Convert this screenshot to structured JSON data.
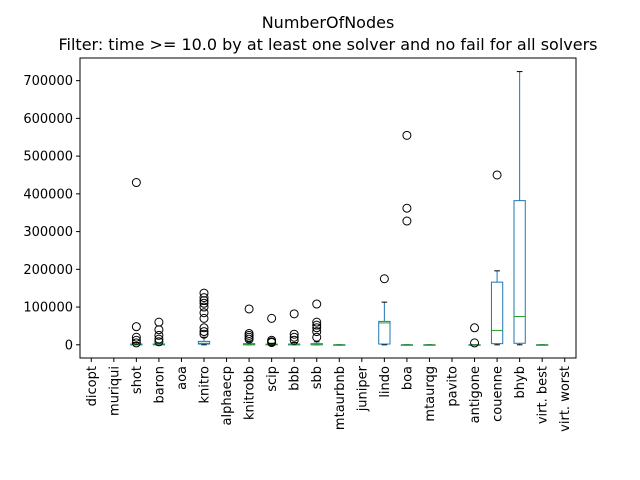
{
  "chart_data": {
    "type": "box",
    "title": "NumberOfNodes",
    "subtitle": "Filter: time >= 10.0 by at least one solver and no fail for all solvers",
    "xlabel": "",
    "ylabel": "",
    "ylim": [
      -35000,
      760000
    ],
    "yticks": [
      0,
      100000,
      200000,
      300000,
      400000,
      500000,
      600000,
      700000
    ],
    "grid": false,
    "box_color": "#1f77b4",
    "median_color": "#2ca02c",
    "whisker_color": "#1f77b4",
    "flier_color": "#000000",
    "categories": [
      "dicopt",
      "muriqui",
      "shot",
      "baron",
      "aoa",
      "knitro",
      "alphaecp",
      "knitrobb",
      "scip",
      "bbb",
      "sbb",
      "mtaurbnb",
      "juniper",
      "lindo",
      "boa",
      "mtaurqg",
      "pavito",
      "antigone",
      "couenne",
      "bhyb",
      "virt. best",
      "virt. worst"
    ],
    "boxes": [
      null,
      null,
      {
        "whislo": 0,
        "q1": 0,
        "med": 200,
        "q3": 2000,
        "whishi": 6000,
        "fliers": [
          430000,
          48000,
          20000,
          12000,
          5000
        ]
      },
      {
        "whislo": 0,
        "q1": 0,
        "med": 150,
        "q3": 2000,
        "whishi": 5000,
        "fliers": [
          60000,
          40000,
          25000,
          15000,
          8000
        ]
      },
      null,
      {
        "whislo": 0,
        "q1": 2000,
        "med": 4000,
        "q3": 9000,
        "whishi": 20000,
        "fliers": [
          137000,
          125000,
          117000,
          110000,
          100000,
          85000,
          70000,
          45000,
          35000,
          28000
        ]
      },
      null,
      {
        "whislo": 0,
        "q1": 0,
        "med": 500,
        "q3": 3000,
        "whishi": 8000,
        "fliers": [
          95000,
          30000,
          25000,
          20000,
          15000
        ]
      },
      {
        "whislo": 0,
        "q1": 0,
        "med": 300,
        "q3": 1500,
        "whishi": 4000,
        "fliers": [
          70000,
          12000,
          8000,
          6000
        ]
      },
      {
        "whislo": 0,
        "q1": 0,
        "med": 300,
        "q3": 2000,
        "whishi": 6000,
        "fliers": [
          82000,
          28000,
          20000,
          12000
        ]
      },
      {
        "whislo": 0,
        "q1": 0,
        "med": 500,
        "q3": 3000,
        "whishi": 8000,
        "fliers": [
          108000,
          60000,
          52000,
          45000,
          35000,
          20000
        ]
      },
      {
        "whislo": 0,
        "q1": 0,
        "med": 0,
        "q3": 0,
        "whishi": 0,
        "fliers": []
      },
      null,
      {
        "whislo": 0,
        "q1": 2000,
        "med": 58000,
        "q3": 62000,
        "whishi": 113000,
        "fliers": [
          175000
        ]
      },
      {
        "whislo": 0,
        "q1": 0,
        "med": 0,
        "q3": 0,
        "whishi": 0,
        "fliers": [
          555000,
          362000,
          328000
        ]
      },
      {
        "whislo": 0,
        "q1": 0,
        "med": 0,
        "q3": 0,
        "whishi": 0,
        "fliers": []
      },
      null,
      {
        "whislo": 0,
        "q1": 0,
        "med": 0,
        "q3": 0,
        "whishi": 0,
        "fliers": [
          45000,
          5000
        ]
      },
      {
        "whislo": 0,
        "q1": 3000,
        "med": 38000,
        "q3": 166000,
        "whishi": 196000,
        "fliers": [
          450000
        ]
      },
      {
        "whislo": 0,
        "q1": 4000,
        "med": 75000,
        "q3": 382000,
        "whishi": 724000,
        "fliers": []
      },
      {
        "whislo": 0,
        "q1": 0,
        "med": 0,
        "q3": 0,
        "whishi": 0,
        "fliers": []
      },
      null
    ]
  }
}
